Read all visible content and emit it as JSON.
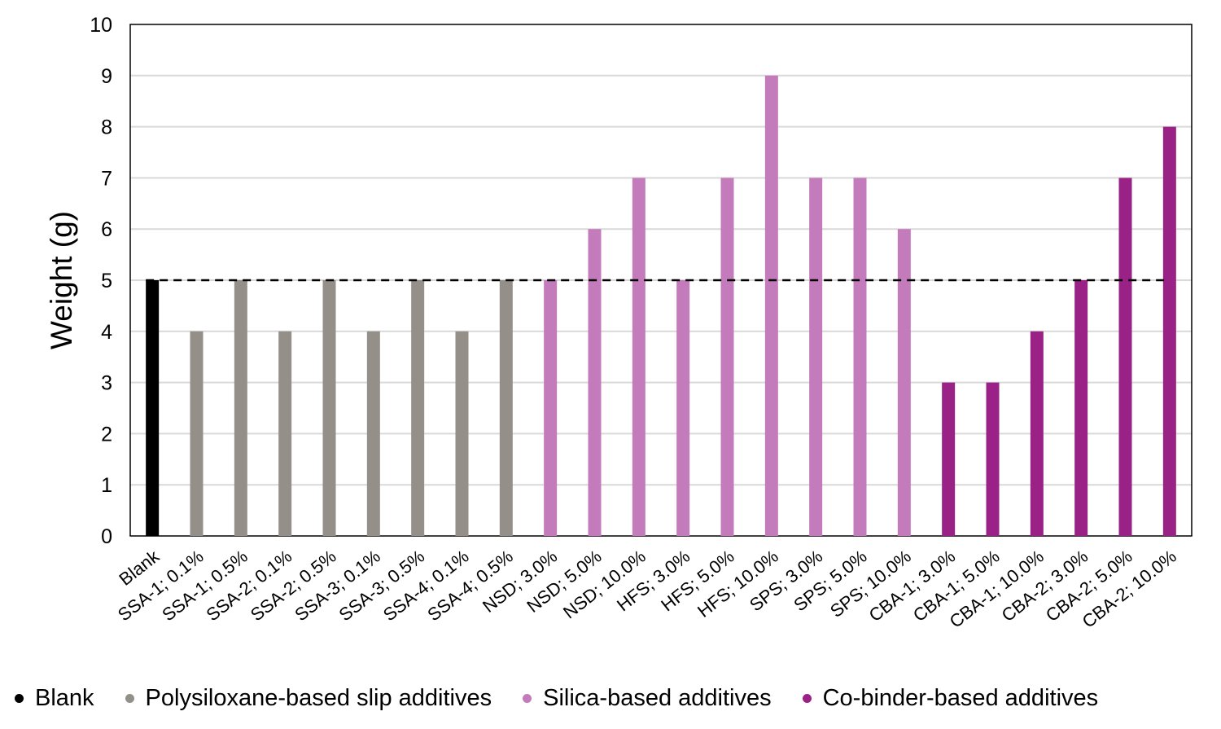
{
  "chart_data": {
    "type": "bar",
    "ylabel": "Weight (g)",
    "xlabel": "",
    "ylim": [
      0,
      10
    ],
    "yticks": [
      "0",
      "1",
      "2",
      "3",
      "4",
      "5",
      "6",
      "7",
      "8",
      "9",
      "10"
    ],
    "grid": true,
    "reference_line": {
      "y": 5,
      "style": "dashed",
      "color": "#000000"
    },
    "categories": [
      "Blank",
      "SSA-1; 0.1%",
      "SSA-1; 0.5%",
      "SSA-2; 0.1%",
      "SSA-2; 0.5%",
      "SSA-3; 0.1%",
      "SSA-3; 0.5%",
      "SSA-4; 0.1%",
      "SSA-4; 0.5%",
      "NSD; 3.0%",
      "NSD; 5.0%",
      "NSD; 10.0%",
      "HFS; 3.0%",
      "HFS; 5.0%",
      "HFS; 10.0%",
      "SPS; 3.0%",
      "SPS; 5.0%",
      "SPS; 10.0%",
      "CBA-1; 3.0%",
      "CBA-1; 5.0%",
      "CBA-1; 10.0%",
      "CBA-2; 3.0%",
      "CBA-2; 5.0%",
      "CBA-2; 10.0%"
    ],
    "values": [
      5,
      4,
      5,
      4,
      5,
      4,
      5,
      4,
      5,
      5,
      6,
      7,
      5,
      7,
      9,
      7,
      7,
      6,
      3,
      3,
      4,
      5,
      7,
      8
    ],
    "groups": [
      0,
      1,
      1,
      1,
      1,
      1,
      1,
      1,
      1,
      2,
      2,
      2,
      2,
      2,
      2,
      2,
      2,
      2,
      3,
      3,
      3,
      3,
      3,
      3
    ],
    "legend": [
      {
        "name": "Blank",
        "color": "#000000"
      },
      {
        "name": "Polysiloxane-based slip additives",
        "color": "#958f89"
      },
      {
        "name": "Silica-based additives",
        "color": "#c47bbc"
      },
      {
        "name": "Co-binder-based additives",
        "color": "#9a2286"
      }
    ],
    "legend_position": "bottom"
  }
}
